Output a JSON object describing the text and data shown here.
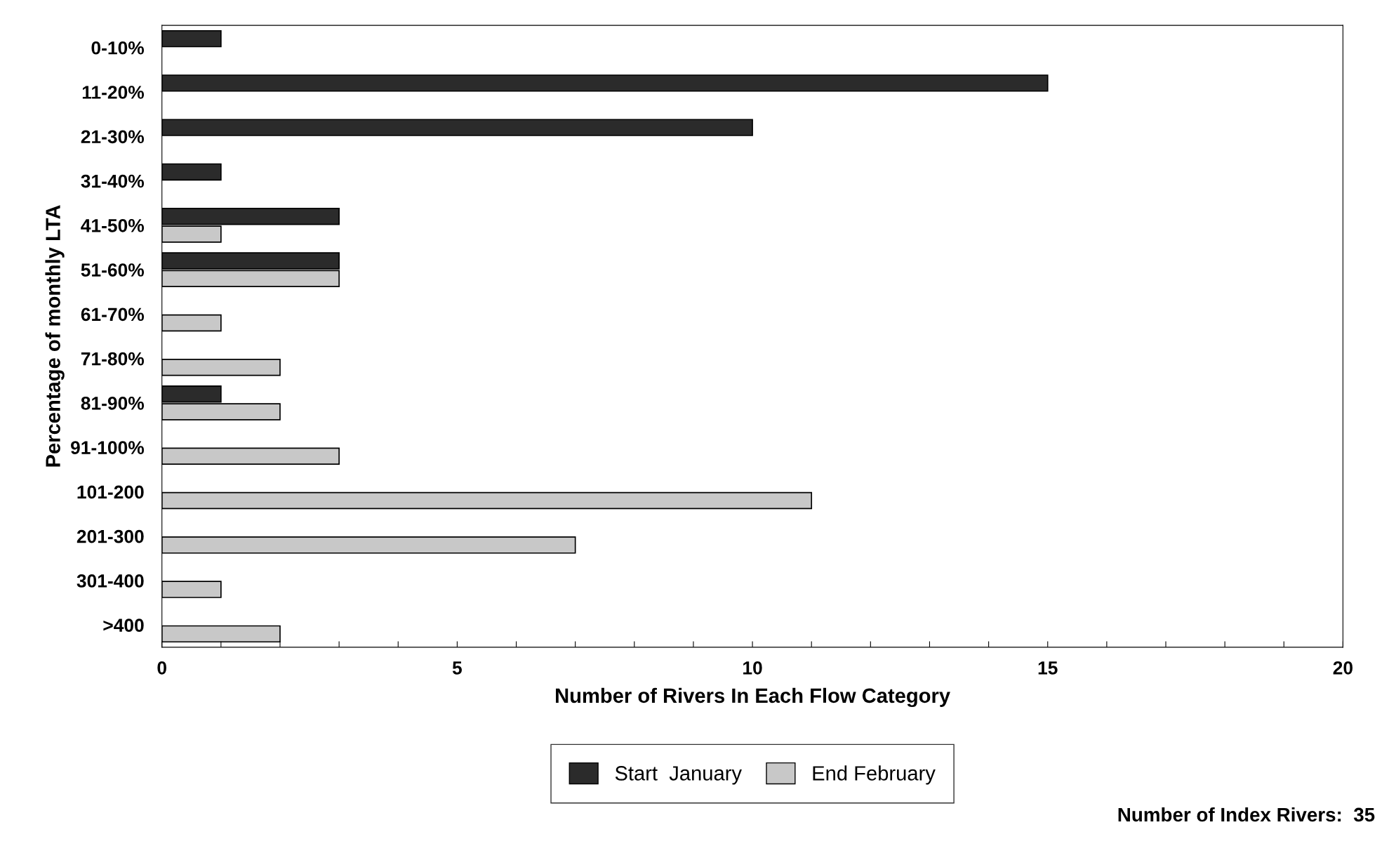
{
  "chart_data": {
    "type": "bar",
    "orientation": "horizontal",
    "xlabel": "Number of Rivers In Each Flow Category",
    "ylabel": "Percentage of monthly LTA",
    "categories": [
      "0-10%",
      "11-20%",
      "21-30%",
      "31-40%",
      "41-50%",
      "51-60%",
      "61-70%",
      "71-80%",
      "81-90%",
      "91-100%",
      "101-200",
      "201-300",
      "301-400",
      ">400"
    ],
    "series": [
      {
        "name": "Start  January",
        "color": "#2b2b2b",
        "values": [
          1,
          15,
          10,
          1,
          3,
          3,
          0,
          0,
          1,
          0,
          0,
          0,
          0,
          0
        ]
      },
      {
        "name": "End February",
        "color": "#c8c8c8",
        "values": [
          0,
          0,
          0,
          0,
          1,
          3,
          1,
          2,
          2,
          3,
          11,
          7,
          1,
          2
        ]
      }
    ],
    "xlim": [
      0,
      20
    ],
    "xticks": [
      0,
      {
        "value": 1,
        "label": null
      },
      {
        "value": 2,
        "label": null
      },
      {
        "value": 3,
        "label": null
      },
      {
        "value": 4,
        "label": null
      },
      5,
      {
        "value": 6,
        "label": null
      },
      {
        "value": 7,
        "label": null
      },
      {
        "value": 8,
        "label": null
      },
      {
        "value": 9,
        "label": null
      },
      10,
      {
        "value": 11,
        "label": null
      },
      {
        "value": 12,
        "label": null
      },
      {
        "value": 13,
        "label": null
      },
      {
        "value": 14,
        "label": null
      },
      15,
      {
        "value": 16,
        "label": null
      },
      {
        "value": 17,
        "label": null
      },
      {
        "value": 18,
        "label": null
      },
      {
        "value": 19,
        "label": null
      },
      20
    ],
    "grid": false,
    "legend": "bottom",
    "annotations": [
      "Number of Index Rivers:  35"
    ]
  }
}
